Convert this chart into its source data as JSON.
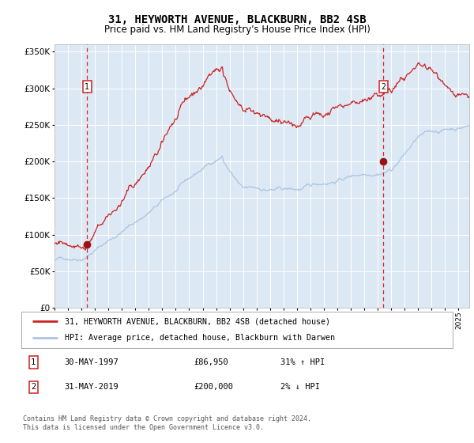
{
  "title": "31, HEYWORTH AVENUE, BLACKBURN, BB2 4SB",
  "subtitle": "Price paid vs. HM Land Registry's House Price Index (HPI)",
  "legend_line1": "31, HEYWORTH AVENUE, BLACKBURN, BB2 4SB (detached house)",
  "legend_line2": "HPI: Average price, detached house, Blackburn with Darwen",
  "footer": "Contains HM Land Registry data © Crown copyright and database right 2024.\nThis data is licensed under the Open Government Licence v3.0.",
  "sale1_date": "30-MAY-1997",
  "sale1_price": 86950,
  "sale1_hpi": "31% ↑ HPI",
  "sale2_date": "31-MAY-2019",
  "sale2_price": 200000,
  "sale2_hpi": "2% ↓ HPI",
  "sale1_x": 1997.42,
  "sale2_x": 2019.42,
  "hpi_color": "#aac4e0",
  "price_color": "#cc2222",
  "vline_color": "#dd2222",
  "dot_color": "#991111",
  "plot_bg": "#dce9f5",
  "ylim": [
    0,
    360000
  ],
  "yticks": [
    0,
    50000,
    100000,
    150000,
    200000,
    250000,
    300000,
    350000
  ],
  "xlim_start": 1995.0,
  "xlim_end": 2025.8
}
